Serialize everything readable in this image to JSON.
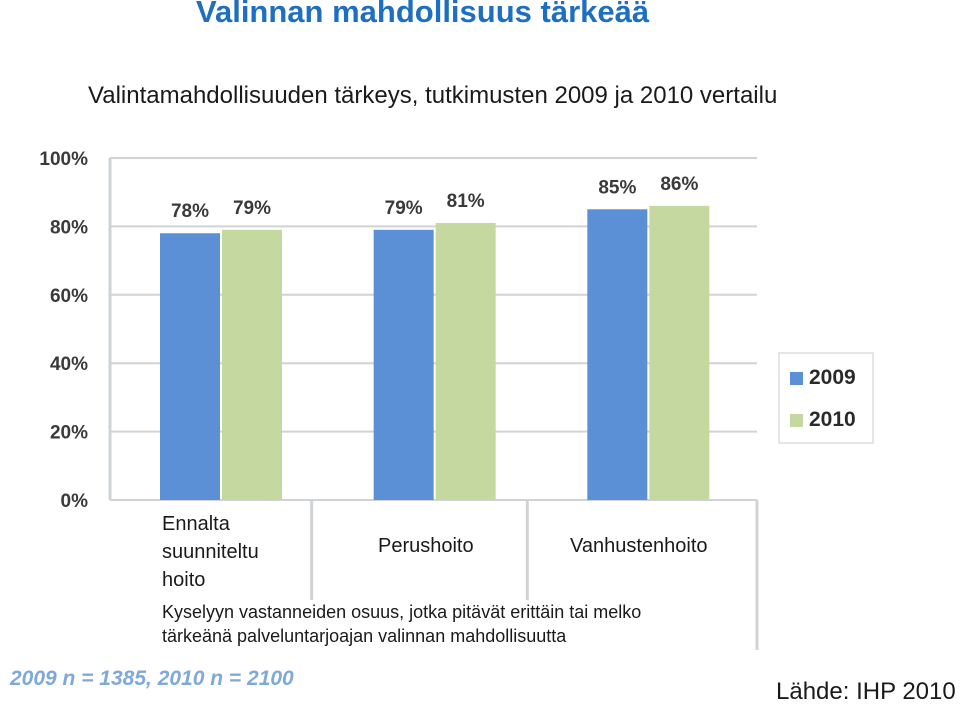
{
  "header": {
    "title": "Valinnan mahdollisuus tärkeää",
    "subtitle": "Valintamahdollisuuden tärkeys, tutkimusten 2009 ja 2010 vertailu"
  },
  "chart_data": {
    "type": "bar",
    "categories": [
      "Ennalta suunniteltu hoito",
      "Perushoito",
      "Vanhustenhoito"
    ],
    "category_lines": [
      [
        "Ennalta",
        "suunniteltu",
        "hoito"
      ],
      [
        "Perushoito"
      ],
      [
        "Vanhustenhoito"
      ]
    ],
    "series": [
      {
        "name": "2009",
        "values": [
          78,
          79,
          85
        ],
        "labels": [
          "78%",
          "79%",
          "85%"
        ],
        "color": "#5b8fd6"
      },
      {
        "name": "2010",
        "values": [
          79,
          81,
          86
        ],
        "labels": [
          "79%",
          "81%",
          "86%"
        ],
        "color": "#c4d8a0"
      }
    ],
    "yticks": [
      0,
      20,
      40,
      60,
      80,
      100
    ],
    "ytick_labels": [
      "0%",
      "20%",
      "40%",
      "60%",
      "80%",
      "100%"
    ],
    "ylim": [
      0,
      100
    ],
    "grid": true,
    "legend_position": "right"
  },
  "caption": {
    "line1": "Kyselyyn vastanneiden osuus, jotka pitävät erittäin tai melko",
    "line2": "tärkeänä palveluntarjoajan valinnan mahdollisuutta"
  },
  "footer": {
    "sample": "2009 n = 1385, 2010 n = 2100",
    "source": "Lähde: IHP 2010"
  },
  "colors": {
    "title": "#1f6fc0",
    "grid": "#d0d3d6",
    "axis_text": "#3a3a3a",
    "sample_note": "#7ea9d9"
  }
}
